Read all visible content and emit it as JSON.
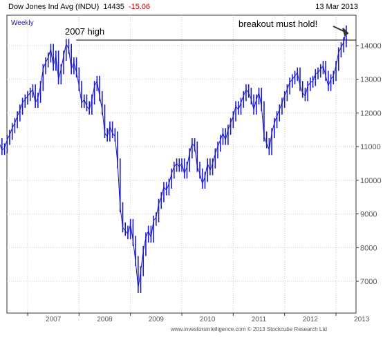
{
  "header": {
    "instrument": "Dow Jones Ind Avg (INDU)",
    "last_price": "14435",
    "change": "-15.06",
    "date": "13 Mar 2013"
  },
  "period": "Weekly",
  "footer": {
    "source": "www.investorsintelligence.com  © 2013 Stockcube Research Ltd"
  },
  "colors": {
    "series": "#1a1acc",
    "grid": "#c8c8c8",
    "change": "#c00000",
    "axis": "#555555"
  },
  "chart_data": {
    "type": "line",
    "period": "Weekly",
    "grid": true,
    "ylim": [
      6400,
      14800
    ],
    "y_ticks": [
      7000,
      8000,
      9000,
      10000,
      11000,
      12000,
      13000,
      14000
    ],
    "x_ticks": [
      "2007",
      "2008",
      "2009",
      "2010",
      "2011",
      "2012",
      "2013"
    ],
    "annotations": [
      {
        "text": "2007 high",
        "value": 14165
      },
      {
        "text": "breakout must hold!"
      }
    ],
    "series": [
      {
        "values": [
          [
            2006.35,
            11150
          ],
          [
            2006.4,
            11500
          ],
          [
            2006.45,
            11100
          ],
          [
            2006.5,
            10900
          ],
          [
            2006.55,
            10950
          ],
          [
            2006.6,
            11200
          ],
          [
            2006.65,
            11350
          ],
          [
            2006.7,
            11550
          ],
          [
            2006.75,
            11700
          ],
          [
            2006.8,
            11900
          ],
          [
            2006.85,
            12100
          ],
          [
            2006.9,
            12300
          ],
          [
            2006.95,
            12400
          ],
          [
            2007.0,
            12500
          ],
          [
            2007.05,
            12600
          ],
          [
            2007.1,
            12700
          ],
          [
            2007.15,
            12300
          ],
          [
            2007.2,
            12450
          ],
          [
            2007.25,
            12800
          ],
          [
            2007.3,
            13300
          ],
          [
            2007.35,
            13500
          ],
          [
            2007.4,
            13650
          ],
          [
            2007.45,
            13900
          ],
          [
            2007.5,
            13400
          ],
          [
            2007.55,
            13700
          ],
          [
            2007.6,
            13000
          ],
          [
            2007.65,
            13300
          ],
          [
            2007.7,
            13700
          ],
          [
            2007.75,
            14050
          ],
          [
            2007.8,
            13900
          ],
          [
            2007.85,
            13300
          ],
          [
            2007.9,
            13500
          ],
          [
            2007.95,
            13200
          ],
          [
            2008.0,
            12800
          ],
          [
            2008.05,
            12300
          ],
          [
            2008.1,
            12400
          ],
          [
            2008.15,
            12200
          ],
          [
            2008.2,
            12100
          ],
          [
            2008.25,
            12400
          ],
          [
            2008.3,
            12800
          ],
          [
            2008.35,
            12950
          ],
          [
            2008.4,
            12500
          ],
          [
            2008.45,
            12100
          ],
          [
            2008.5,
            11400
          ],
          [
            2008.55,
            11300
          ],
          [
            2008.6,
            11600
          ],
          [
            2008.65,
            11400
          ],
          [
            2008.7,
            11300
          ],
          [
            2008.75,
            10500
          ],
          [
            2008.8,
            9200
          ],
          [
            2008.85,
            8600
          ],
          [
            2008.9,
            8500
          ],
          [
            2008.95,
            8400
          ],
          [
            2009.0,
            8700
          ],
          [
            2009.05,
            8200
          ],
          [
            2009.1,
            7600
          ],
          [
            2009.15,
            6800
          ],
          [
            2009.2,
            7300
          ],
          [
            2009.25,
            7900
          ],
          [
            2009.3,
            8300
          ],
          [
            2009.35,
            8500
          ],
          [
            2009.4,
            8300
          ],
          [
            2009.45,
            8800
          ],
          [
            2009.5,
            8900
          ],
          [
            2009.55,
            9300
          ],
          [
            2009.6,
            9500
          ],
          [
            2009.65,
            9800
          ],
          [
            2009.7,
            9700
          ],
          [
            2009.75,
            9900
          ],
          [
            2009.8,
            10200
          ],
          [
            2009.85,
            10400
          ],
          [
            2009.9,
            10500
          ],
          [
            2009.95,
            10400
          ],
          [
            2010.0,
            10500
          ],
          [
            2010.05,
            10200
          ],
          [
            2010.1,
            10400
          ],
          [
            2010.15,
            10800
          ],
          [
            2010.2,
            11100
          ],
          [
            2010.25,
            11000
          ],
          [
            2010.3,
            10400
          ],
          [
            2010.35,
            10200
          ],
          [
            2010.4,
            9900
          ],
          [
            2010.45,
            10100
          ],
          [
            2010.5,
            10500
          ],
          [
            2010.55,
            10300
          ],
          [
            2010.6,
            10500
          ],
          [
            2010.65,
            10800
          ],
          [
            2010.7,
            11000
          ],
          [
            2010.75,
            11200
          ],
          [
            2010.8,
            11400
          ],
          [
            2010.85,
            11200
          ],
          [
            2010.9,
            11500
          ],
          [
            2010.95,
            11700
          ],
          [
            2011.0,
            11900
          ],
          [
            2011.05,
            12200
          ],
          [
            2011.1,
            12100
          ],
          [
            2011.15,
            12300
          ],
          [
            2011.2,
            12500
          ],
          [
            2011.25,
            12700
          ],
          [
            2011.3,
            12600
          ],
          [
            2011.35,
            12400
          ],
          [
            2011.4,
            12100
          ],
          [
            2011.45,
            12400
          ],
          [
            2011.5,
            12600
          ],
          [
            2011.55,
            12200
          ],
          [
            2011.6,
            11300
          ],
          [
            2011.65,
            11100
          ],
          [
            2011.7,
            10900
          ],
          [
            2011.75,
            11400
          ],
          [
            2011.8,
            11700
          ],
          [
            2011.85,
            11900
          ],
          [
            2011.9,
            12100
          ],
          [
            2011.95,
            12300
          ],
          [
            2012.0,
            12500
          ],
          [
            2012.05,
            12700
          ],
          [
            2012.1,
            12900
          ],
          [
            2012.15,
            13000
          ],
          [
            2012.2,
            13100
          ],
          [
            2012.25,
            13200
          ],
          [
            2012.3,
            12800
          ],
          [
            2012.35,
            12600
          ],
          [
            2012.4,
            12500
          ],
          [
            2012.45,
            12800
          ],
          [
            2012.5,
            12900
          ],
          [
            2012.55,
            12950
          ],
          [
            2012.6,
            13150
          ],
          [
            2012.65,
            13200
          ],
          [
            2012.7,
            13300
          ],
          [
            2012.75,
            13400
          ],
          [
            2012.8,
            13100
          ],
          [
            2012.85,
            12800
          ],
          [
            2012.9,
            13000
          ],
          [
            2012.95,
            13100
          ],
          [
            2013.0,
            13400
          ],
          [
            2013.05,
            13800
          ],
          [
            2013.1,
            13950
          ],
          [
            2013.15,
            14100
          ],
          [
            2013.2,
            14450
          ]
        ]
      }
    ]
  }
}
